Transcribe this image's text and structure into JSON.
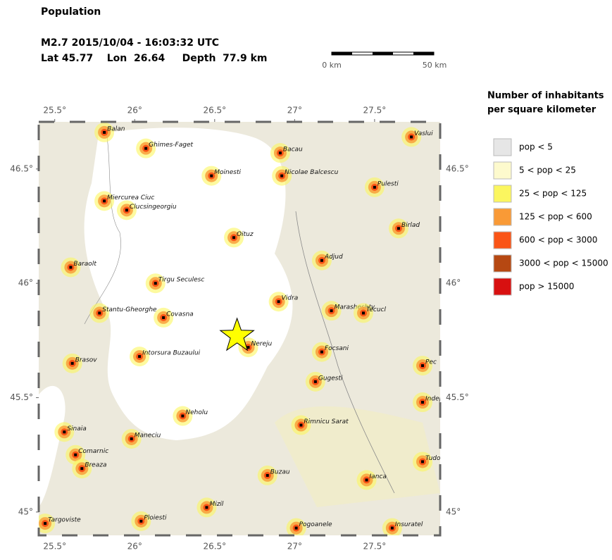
{
  "header": {
    "title": "Population",
    "event": "M2.7  2015/10/04 - 16:03:32 UTC",
    "location": "Lat 45.77    Lon  26.64     Depth  77.9 km"
  },
  "scale_bar": {
    "start": "0 km",
    "end": "50 km"
  },
  "map": {
    "xlim": [
      25.4,
      27.91
    ],
    "ylim": [
      44.898,
      46.706
    ],
    "xticks": [
      {
        "value": 25.5,
        "label": "25.5°"
      },
      {
        "value": 26,
        "label": "26°"
      },
      {
        "value": 26.5,
        "label": "26.5°"
      },
      {
        "value": 27,
        "label": "27°"
      },
      {
        "value": 27.5,
        "label": "27.5°"
      }
    ],
    "yticks": [
      {
        "value": 45,
        "label": "45°"
      },
      {
        "value": 45.5,
        "label": "45.5°"
      },
      {
        "value": 46,
        "label": "46°"
      },
      {
        "value": 46.5,
        "label": "46.5°"
      }
    ],
    "epicenter": {
      "lon": 26.64,
      "lat": 45.77
    },
    "cities": [
      {
        "name": "Balan",
        "lon": 25.81,
        "lat": 46.66
      },
      {
        "name": "Ghimes-Faget",
        "lon": 26.07,
        "lat": 46.59
      },
      {
        "name": "Bacau",
        "lon": 26.91,
        "lat": 46.57
      },
      {
        "name": "Vaslui",
        "lon": 27.73,
        "lat": 46.64
      },
      {
        "name": "Moinesti",
        "lon": 26.48,
        "lat": 46.47
      },
      {
        "name": "Nicolae Balcescu",
        "lon": 26.92,
        "lat": 46.47
      },
      {
        "name": "Pulesti",
        "lon": 27.5,
        "lat": 46.42
      },
      {
        "name": "Miercurea Ciuc",
        "lon": 25.81,
        "lat": 46.36
      },
      {
        "name": "Clucsingeorgiu",
        "lon": 25.95,
        "lat": 46.32
      },
      {
        "name": "Birlad",
        "lon": 27.65,
        "lat": 46.24
      },
      {
        "name": "Oituz",
        "lon": 26.62,
        "lat": 46.2
      },
      {
        "name": "Adjud",
        "lon": 27.17,
        "lat": 46.1
      },
      {
        "name": "Baraolt",
        "lon": 25.6,
        "lat": 46.07
      },
      {
        "name": "Tirgu Seculesc",
        "lon": 26.13,
        "lat": 46.0
      },
      {
        "name": "Vidra",
        "lon": 26.9,
        "lat": 45.92
      },
      {
        "name": "Marasheshty",
        "lon": 27.23,
        "lat": 45.88
      },
      {
        "name": "Stantu-Gheorghe",
        "lon": 25.78,
        "lat": 45.87
      },
      {
        "name": "Covasna",
        "lon": 26.18,
        "lat": 45.85
      },
      {
        "name": "Tecucl",
        "lon": 27.43,
        "lat": 45.87
      },
      {
        "name": "Nereju",
        "lon": 26.71,
        "lat": 45.72
      },
      {
        "name": "Focsani",
        "lon": 27.17,
        "lat": 45.7
      },
      {
        "name": "Intorsura Buzaului",
        "lon": 26.03,
        "lat": 45.68
      },
      {
        "name": "Brasov",
        "lon": 25.61,
        "lat": 45.65
      },
      {
        "name": "Pec",
        "lon": 27.8,
        "lat": 45.64
      },
      {
        "name": "Gugesti",
        "lon": 27.13,
        "lat": 45.57
      },
      {
        "name": "Indepe",
        "lon": 27.8,
        "lat": 45.48
      },
      {
        "name": "Neholu",
        "lon": 26.3,
        "lat": 45.42
      },
      {
        "name": "Rimnicu Sarat",
        "lon": 27.04,
        "lat": 45.38
      },
      {
        "name": "Sinaia",
        "lon": 25.56,
        "lat": 45.35
      },
      {
        "name": "Maneciu",
        "lon": 25.98,
        "lat": 45.32
      },
      {
        "name": "Comarnic",
        "lon": 25.63,
        "lat": 45.25
      },
      {
        "name": "Tudo",
        "lon": 27.8,
        "lat": 45.22
      },
      {
        "name": "Breaza",
        "lon": 25.67,
        "lat": 45.19
      },
      {
        "name": "Buzau",
        "lon": 26.83,
        "lat": 45.16
      },
      {
        "name": "Ianca",
        "lon": 27.45,
        "lat": 45.14
      },
      {
        "name": "Mizil",
        "lon": 26.45,
        "lat": 45.02
      },
      {
        "name": "Ploiesti",
        "lon": 26.04,
        "lat": 44.96
      },
      {
        "name": "Targoviste",
        "lon": 25.44,
        "lat": 44.95
      },
      {
        "name": "Pogoanele",
        "lon": 27.01,
        "lat": 44.93
      },
      {
        "name": "Insuratel",
        "lon": 27.61,
        "lat": 44.93
      }
    ]
  },
  "legend": {
    "title_lines": [
      "Number of inhabitants",
      "per square kilometer"
    ],
    "items": [
      {
        "label": "pop < 5",
        "color": "#e6e6e6"
      },
      {
        "label": "5 < pop < 25",
        "color": "#fdfacd"
      },
      {
        "label": "25 < pop < 125",
        "color": "#fbf65f"
      },
      {
        "label": "125 < pop < 600",
        "color": "#f99a36"
      },
      {
        "label": "600 < pop < 3000",
        "color": "#fa5416"
      },
      {
        "label": "3000 < pop < 15000",
        "color": "#b64812"
      },
      {
        "label": "pop > 15000",
        "color": "#d81010"
      }
    ]
  }
}
